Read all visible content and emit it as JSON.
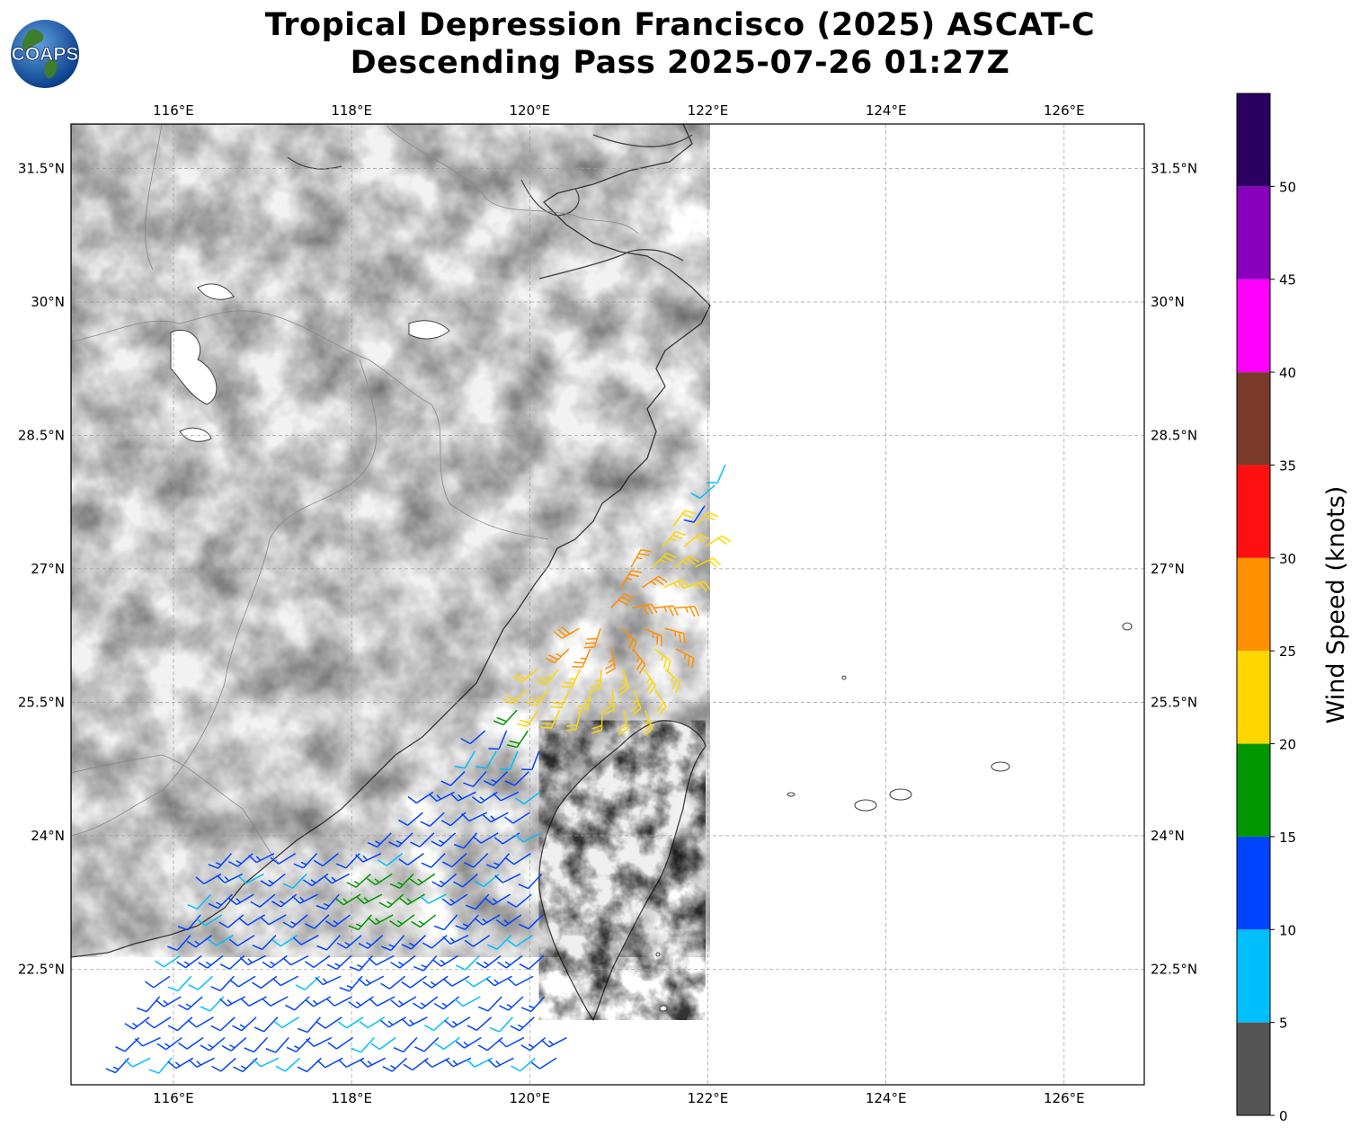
{
  "title": {
    "line1": "Tropical Depression Francisco (2025) ASCAT-C",
    "line2": "Descending Pass 2025-07-26 01:27Z"
  },
  "logo": {
    "text": "COAPS",
    "icon": "globe-logo-icon"
  },
  "map": {
    "lon_range": [
      114.85,
      126.9
    ],
    "lat_range": [
      21.2,
      32
    ],
    "lon_ticks": [
      "116°E",
      "118°E",
      "120°E",
      "122°E",
      "124°E",
      "126°E"
    ],
    "lat_ticks": [
      "31.5°N",
      "30°N",
      "28.5°N",
      "27°N",
      "25.5°N",
      "24°N",
      "22.5°N"
    ],
    "grid": true,
    "background": "grayscale terrain"
  },
  "colorbar": {
    "label": "Wind Speed (knots)",
    "ticks": [
      "0",
      "5",
      "10",
      "15",
      "20",
      "25",
      "30",
      "35",
      "40",
      "45",
      "50"
    ],
    "colors": [
      "#555555",
      "#00bfff",
      "#0044ff",
      "#009600",
      "#ffd700",
      "#ff9000",
      "#ff1010",
      "#7a3b2a",
      "#ff00ff",
      "#8800bb",
      "#2a0060"
    ]
  }
}
